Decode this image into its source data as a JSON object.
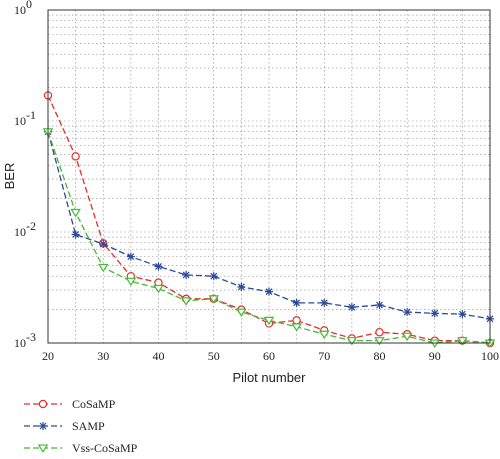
{
  "chart_data": {
    "type": "line",
    "title": "",
    "xlabel": "Pilot number",
    "ylabel": "BER",
    "xlim": [
      20,
      100
    ],
    "ylim": [
      0.001,
      1
    ],
    "yscale": "log",
    "grid": true,
    "x_ticks": [
      "20",
      "30",
      "40",
      "50",
      "60",
      "70",
      "80",
      "90",
      "100"
    ],
    "y_ticks": [
      {
        "value": 1,
        "base": "10",
        "exp": "0"
      },
      {
        "value": 0.1,
        "base": "10",
        "exp": "-1"
      },
      {
        "value": 0.01,
        "base": "10",
        "exp": "-2"
      },
      {
        "value": 0.001,
        "base": "10",
        "exp": "-3"
      }
    ],
    "legend_position": "below",
    "x": [
      20,
      25,
      30,
      35,
      40,
      45,
      50,
      55,
      60,
      65,
      70,
      75,
      80,
      85,
      90,
      95,
      100
    ],
    "series": [
      {
        "name": "CoSaMP",
        "color": "#e0302a",
        "marker": "circle",
        "values": [
          0.17,
          0.048,
          0.0079,
          0.004,
          0.0035,
          0.0025,
          0.0025,
          0.002,
          0.0015,
          0.0016,
          0.0013,
          0.0011,
          0.00125,
          0.0012,
          0.00105,
          0.00105,
          0.001
        ]
      },
      {
        "name": "SAMP",
        "color": "#2c4a9a",
        "marker": "star",
        "values": [
          0.08,
          0.0095,
          0.0078,
          0.006,
          0.0049,
          0.0041,
          0.004,
          0.0032,
          0.0029,
          0.0023,
          0.0023,
          0.0021,
          0.0022,
          0.0019,
          0.00185,
          0.00182,
          0.00165
        ]
      },
      {
        "name": "Vss-CoSaMP",
        "color": "#44bb33",
        "marker": "triangle",
        "values": [
          0.08,
          0.015,
          0.0048,
          0.0036,
          0.0031,
          0.0024,
          0.0025,
          0.0019,
          0.0016,
          0.0014,
          0.0012,
          0.00105,
          0.00105,
          0.00115,
          0.001,
          0.00105,
          0.001
        ]
      }
    ]
  }
}
